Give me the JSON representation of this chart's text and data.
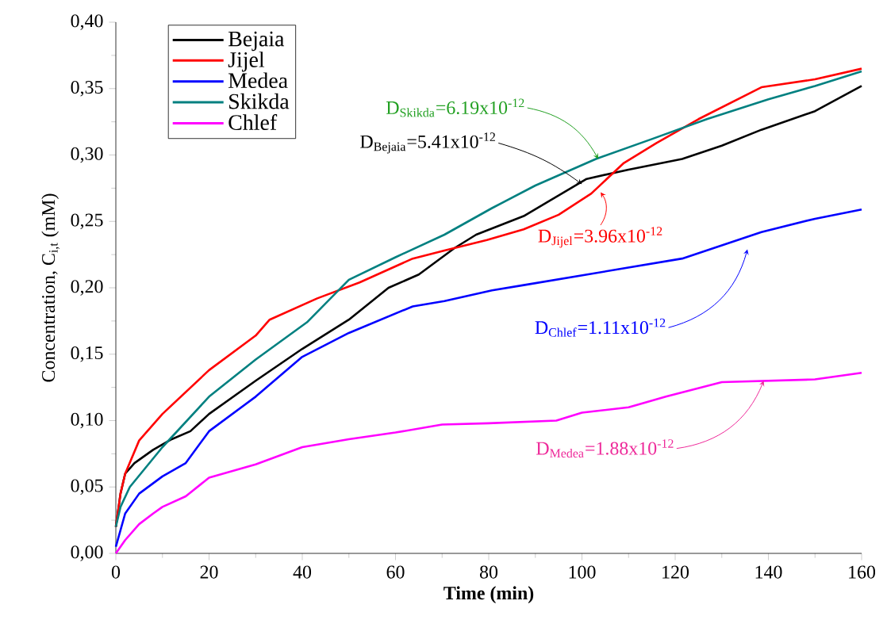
{
  "chart_data": {
    "type": "line",
    "xlabel": "Time (min)",
    "ylabel": "Concentration, C$_{i,t}$ (mM)",
    "xlim": [
      0,
      160
    ],
    "xticks": [
      0,
      20,
      40,
      60,
      80,
      100,
      120,
      140,
      160
    ],
    "ylim": [
      0,
      0.4
    ],
    "yticks": [
      {
        "value": 0,
        "label": "0,00"
      },
      {
        "value": 0.05,
        "label": "0,05"
      },
      {
        "value": 0.1,
        "label": "0,10"
      },
      {
        "value": 0.15,
        "label": "0,15"
      },
      {
        "value": 0.2,
        "label": "0,20"
      },
      {
        "value": 0.25,
        "label": "0,25"
      },
      {
        "value": 0.3,
        "label": "0,30"
      },
      {
        "value": 0.35,
        "label": "0,35"
      },
      {
        "value": 0.4,
        "label": "0,40"
      }
    ],
    "legend": "top left",
    "line_style": "solid",
    "series": [
      {
        "name": "Bejaia",
        "color": "#000000",
        "x": [
          0,
          1,
          2,
          4,
          8,
          12,
          16,
          20,
          30,
          40,
          50,
          58.5,
          65,
          72.7,
          77.3,
          87.5,
          101,
          110,
          121.5,
          130,
          138.5,
          150,
          160
        ],
        "values": [
          0.02,
          0.045,
          0.06,
          0.068,
          0.078,
          0.086,
          0.092,
          0.105,
          0.13,
          0.154,
          0.176,
          0.2,
          0.21,
          0.23,
          0.24,
          0.254,
          0.282,
          0.289,
          0.297,
          0.307,
          0.319,
          0.333,
          0.352
        ]
      },
      {
        "name": "Jijel",
        "color": "#ff0000",
        "x": [
          0,
          1,
          2,
          5,
          10,
          20,
          30,
          33,
          43.2,
          52.3,
          63.7,
          70.5,
          79.6,
          87.5,
          95,
          102,
          109,
          116,
          125,
          138.5,
          150,
          160
        ],
        "values": [
          0.02,
          0.045,
          0.06,
          0.085,
          0.105,
          0.138,
          0.164,
          0.176,
          0.192,
          0.204,
          0.222,
          0.228,
          0.236,
          0.244,
          0.255,
          0.271,
          0.294,
          0.309,
          0.327,
          0.351,
          0.357,
          0.365
        ]
      },
      {
        "name": "Medea",
        "color": "#0000ff",
        "x": [
          0,
          2,
          5,
          10,
          15,
          20,
          25,
          30,
          40,
          50,
          63.7,
          70.5,
          80.7,
          87.5,
          104.5,
          121.5,
          138.5,
          150,
          160
        ],
        "values": [
          0.005,
          0.03,
          0.045,
          0.058,
          0.068,
          0.092,
          0.105,
          0.118,
          0.148,
          0.166,
          0.186,
          0.19,
          0.198,
          0.202,
          0.212,
          0.222,
          0.242,
          0.252,
          0.259
        ]
      },
      {
        "name": "Skikda",
        "color": "#008080",
        "x": [
          0,
          1,
          3,
          10,
          20,
          30,
          41,
          50,
          60,
          70.5,
          80.7,
          90,
          103,
          115,
          126.8,
          140,
          150,
          160
        ],
        "values": [
          0.02,
          0.035,
          0.05,
          0.08,
          0.118,
          0.146,
          0.174,
          0.206,
          0.223,
          0.24,
          0.26,
          0.277,
          0.297,
          0.312,
          0.327,
          0.342,
          0.352,
          0.363
        ]
      },
      {
        "name": "Chlef",
        "color": "#ff00ff",
        "x": [
          0,
          2,
          5,
          8,
          10,
          15,
          20,
          30,
          40,
          50,
          60,
          70,
          80,
          94.5,
          100,
          110,
          118,
          130,
          150,
          160
        ],
        "values": [
          0,
          0.01,
          0.022,
          0.03,
          0.035,
          0.043,
          0.057,
          0.067,
          0.08,
          0.086,
          0.091,
          0.097,
          0.098,
          0.1,
          0.106,
          0.11,
          0.118,
          0.129,
          0.131,
          0.136
        ]
      }
    ],
    "annotations": [
      {
        "text": "D$_{Skikda}$=6.19x10$^{-12}$",
        "x": 103.5,
        "y": 0.297
      },
      {
        "text": "D$_{Bejaia}$=5.41x10$^{-12}$",
        "x": 100,
        "y": 0.278
      },
      {
        "text": "D$_{Jijel}$=3.96x10$^{-12}$",
        "x": 104,
        "y": 0.272
      },
      {
        "text": "D$_{Chlef}$=1.11x10$^{-12}$",
        "x": 135.5,
        "y": 0.229
      },
      {
        "text": "D$_{Medea}$=1.88x10$^{-12}$",
        "x": 139,
        "y": 0.13
      }
    ]
  }
}
